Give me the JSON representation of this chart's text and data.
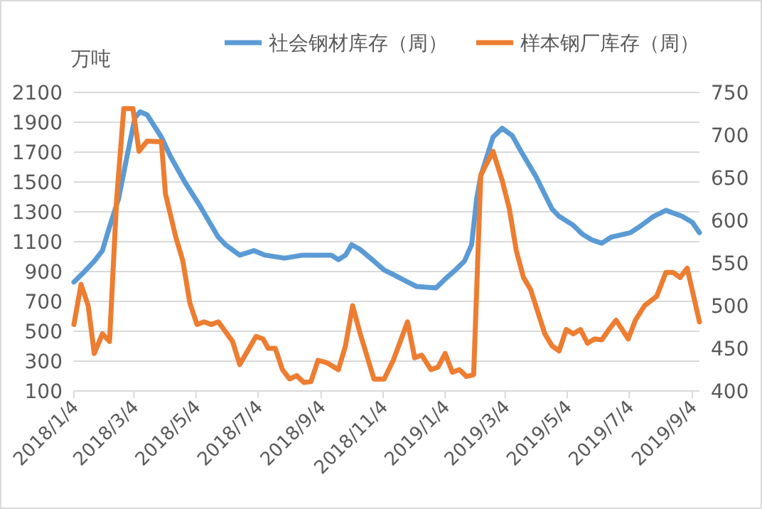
{
  "chart_data": {
    "type": "line",
    "ylabel": "万吨",
    "legend": "top",
    "grid": "y",
    "marker": "none",
    "line_style": "solid",
    "xlim": [
      "2018-01-04",
      "2019-09-11"
    ],
    "xticks": [
      {
        "value": "2018-01-04",
        "label": "2018/1/4"
      },
      {
        "value": "2018-03-04",
        "label": "2018/3/4"
      },
      {
        "value": "2018-05-04",
        "label": "2018/5/4"
      },
      {
        "value": "2018-07-04",
        "label": "2018/7/4"
      },
      {
        "value": "2018-09-04",
        "label": "2018/9/4"
      },
      {
        "value": "2018-11-04",
        "label": "2018/11/4"
      },
      {
        "value": "2019-01-04",
        "label": "2019/1/4"
      },
      {
        "value": "2019-03-04",
        "label": "2019/3/4"
      },
      {
        "value": "2019-05-04",
        "label": "2019/5/4"
      },
      {
        "value": "2019-07-04",
        "label": "2019/7/4"
      },
      {
        "value": "2019-09-04",
        "label": "2019/9/4"
      }
    ],
    "ylim": [
      100,
      2100
    ],
    "yticks": [
      100,
      300,
      500,
      700,
      900,
      1100,
      1300,
      1500,
      1700,
      1900,
      2100
    ],
    "y2lim": [
      400,
      750
    ],
    "y2ticks": [
      400,
      450,
      500,
      550,
      600,
      650,
      700,
      750
    ],
    "series": [
      {
        "name": "社会钢材库存（周）",
        "color": "#5b9bd5",
        "x": [
          "2018-01-04",
          "2018-01-13",
          "2018-01-24",
          "2018-02-01",
          "2018-02-08",
          "2018-02-17",
          "2018-02-26",
          "2018-03-05",
          "2018-03-10",
          "2018-03-17",
          "2018-03-31",
          "2018-04-09",
          "2018-04-23",
          "2018-05-07",
          "2018-05-26",
          "2018-06-02",
          "2018-06-16",
          "2018-06-30",
          "2018-07-11",
          "2018-07-30",
          "2018-08-17",
          "2018-09-03",
          "2018-09-14",
          "2018-09-21",
          "2018-09-28",
          "2018-10-04",
          "2018-10-12",
          "2018-10-26",
          "2018-11-05",
          "2018-11-14",
          "2018-11-28",
          "2018-12-07",
          "2018-12-26",
          "2019-01-04",
          "2019-01-14",
          "2019-01-23",
          "2019-01-30",
          "2019-02-04",
          "2019-02-08",
          "2019-02-20",
          "2019-03-01",
          "2019-03-11",
          "2019-03-20",
          "2019-04-03",
          "2019-04-19",
          "2019-04-26",
          "2019-05-10",
          "2019-05-19",
          "2019-05-29",
          "2019-06-07",
          "2019-06-16",
          "2019-07-05",
          "2019-07-14",
          "2019-07-28",
          "2019-08-09",
          "2019-08-25",
          "2019-09-04",
          "2019-09-11"
        ],
        "values": [
          830,
          890,
          970,
          1040,
          1200,
          1390,
          1700,
          1930,
          1970,
          1950,
          1800,
          1670,
          1500,
          1350,
          1130,
          1080,
          1010,
          1040,
          1010,
          990,
          1010,
          1010,
          1010,
          980,
          1010,
          1080,
          1050,
          970,
          910,
          880,
          830,
          800,
          790,
          850,
          910,
          970,
          1080,
          1390,
          1540,
          1800,
          1860,
          1810,
          1700,
          1540,
          1320,
          1270,
          1210,
          1150,
          1110,
          1090,
          1130,
          1160,
          1200,
          1270,
          1310,
          1270,
          1230,
          1160
        ]
      },
      {
        "name": "样本钢厂库存（周）",
        "color": "#ed7d31",
        "axis": "y2",
        "x": [
          "2018-01-04",
          "2018-01-11",
          "2018-01-18",
          "2018-01-24",
          "2018-02-01",
          "2018-02-08",
          "2018-02-15",
          "2018-02-22",
          "2018-03-03",
          "2018-03-09",
          "2018-03-17",
          "2018-03-31",
          "2018-04-04",
          "2018-04-14",
          "2018-04-21",
          "2018-04-28",
          "2018-05-05",
          "2018-05-12",
          "2018-05-19",
          "2018-05-26",
          "2018-06-09",
          "2018-06-16",
          "2018-07-02",
          "2018-07-09",
          "2018-07-14",
          "2018-07-21",
          "2018-07-28",
          "2018-08-04",
          "2018-08-11",
          "2018-08-18",
          "2018-08-25",
          "2018-09-01",
          "2018-09-10",
          "2018-09-21",
          "2018-09-28",
          "2018-10-05",
          "2018-10-12",
          "2018-10-26",
          "2018-11-05",
          "2018-11-14",
          "2018-11-28",
          "2018-12-05",
          "2018-12-12",
          "2018-12-21",
          "2018-12-28",
          "2019-01-04",
          "2019-01-11",
          "2019-01-18",
          "2019-01-25",
          "2019-02-01",
          "2019-02-08",
          "2019-02-20",
          "2019-03-01",
          "2019-03-08",
          "2019-03-15",
          "2019-03-22",
          "2019-03-29",
          "2019-04-12",
          "2019-04-19",
          "2019-04-26",
          "2019-05-03",
          "2019-05-10",
          "2019-05-17",
          "2019-05-24",
          "2019-05-31",
          "2019-06-07",
          "2019-06-14",
          "2019-06-21",
          "2019-07-03",
          "2019-07-10",
          "2019-07-19",
          "2019-07-31",
          "2019-08-09",
          "2019-08-16",
          "2019-08-23",
          "2019-08-30",
          "2019-09-11"
        ],
        "values": [
          478,
          525,
          500,
          444,
          467,
          458,
          625,
          731,
          731,
          681,
          693,
          692,
          631,
          581,
          553,
          503,
          478,
          481,
          478,
          481,
          458,
          431,
          464,
          461,
          450,
          450,
          425,
          414,
          418,
          410,
          411,
          436,
          433,
          425,
          453,
          500,
          469,
          414,
          414,
          436,
          481,
          439,
          442,
          425,
          428,
          444,
          422,
          425,
          417,
          419,
          653,
          681,
          647,
          614,
          564,
          533,
          519,
          467,
          453,
          447,
          472,
          467,
          472,
          456,
          461,
          460,
          472,
          483,
          461,
          483,
          500,
          511,
          539,
          539,
          533,
          544,
          481
        ]
      }
    ]
  }
}
